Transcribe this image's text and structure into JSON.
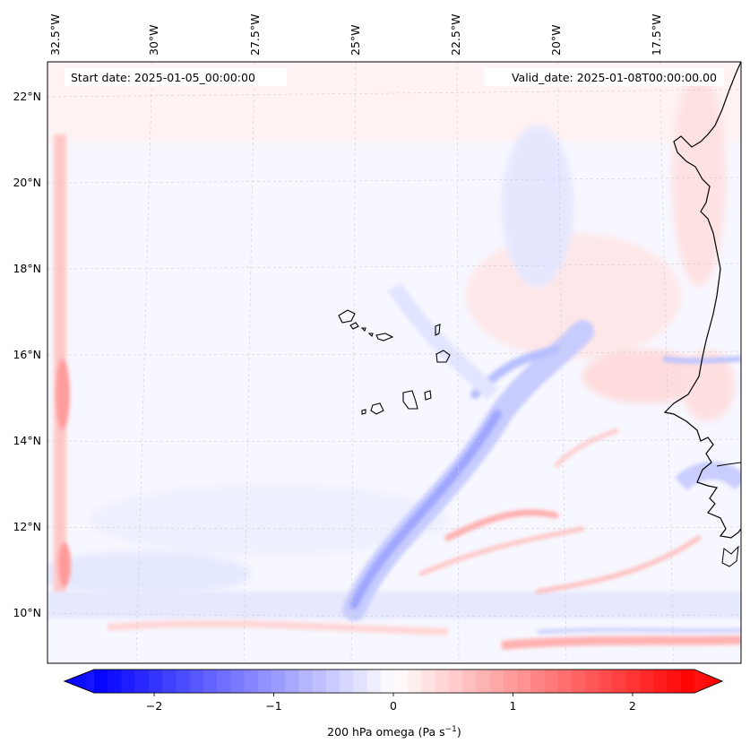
{
  "map": {
    "start_date": "Start date: 2025-01-05_00:00:00",
    "valid_date": "Valid_date: 2025-01-08T00:00:00.00",
    "lon_ticks": [
      "32.5°W",
      "30°W",
      "27.5°W",
      "25°W",
      "22.5°W",
      "20°W",
      "17.5°W"
    ],
    "lat_ticks": [
      "22°N",
      "20°N",
      "18°N",
      "16°N",
      "14°N",
      "12°N",
      "10°N"
    ],
    "variable": "200 hPa omega",
    "units_prefix": "Pa s",
    "units_exponent": "−1"
  },
  "colorbar": {
    "min": -2.75,
    "max": 2.75,
    "tick_values": [
      -2,
      -1,
      0,
      1,
      2
    ],
    "tick_labels": [
      "−2",
      "−1",
      "0",
      "1",
      "2"
    ],
    "label": "200 hPa omega (Pa s−1)",
    "colormap": "bwr",
    "low_color": "#0000ff",
    "mid_color": "#ffffff",
    "high_color": "#ff0000"
  },
  "features": [
    "coastline-west-africa",
    "cape-verde-islands"
  ]
}
